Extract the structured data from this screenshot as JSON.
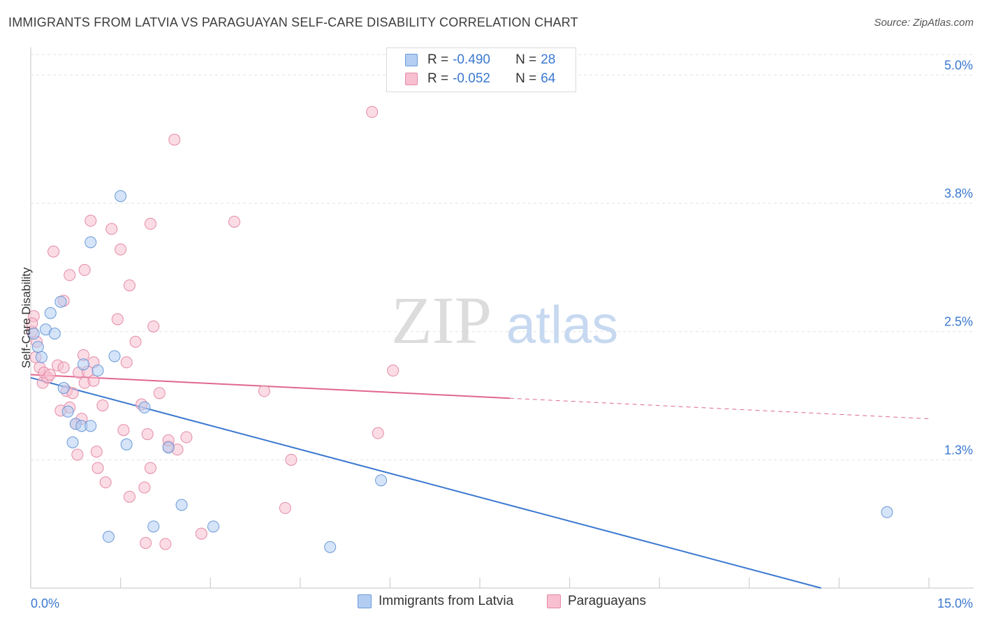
{
  "header": {
    "title": "IMMIGRANTS FROM LATVIA VS PARAGUAYAN SELF-CARE DISABILITY CORRELATION CHART",
    "source": "Source: ZipAtlas.com"
  },
  "watermark": {
    "zip": "ZIP",
    "atlas": "atlas"
  },
  "legend": {
    "rows": [
      {
        "r_label": "R =",
        "r_value": "-0.490",
        "n_label": "N =",
        "n_value": "28"
      },
      {
        "r_label": "R =",
        "r_value": "-0.052",
        "n_label": "N =",
        "n_value": "64"
      }
    ]
  },
  "bottom_legend": {
    "items": [
      "Immigrants from Latvia",
      "Paraguayans"
    ]
  },
  "chart_data": {
    "type": "scatter",
    "title": "IMMIGRANTS FROM LATVIA VS PARAGUAYAN SELF-CARE DISABILITY CORRELATION CHART",
    "ylabel": "Self-Care Disability",
    "xlabel": "",
    "xlim": [
      0,
      15
    ],
    "ylim": [
      0,
      5.2
    ],
    "x_tick_labels": [
      "0.0%",
      "15.0%"
    ],
    "y_ticks": [
      1.25,
      2.5,
      3.75,
      5.0
    ],
    "y_tick_labels": [
      "1.3%",
      "2.5%",
      "3.8%",
      "5.0%"
    ],
    "grid": true,
    "colors": {
      "latvia_fill": "#b3cdf2",
      "latvia_stroke": "#6a9ad8",
      "latvia_line": "#3a78d0",
      "paraguay_fill": "#f7bfd0",
      "paraguay_stroke": "#e48aa6",
      "paraguay_line": "#e0678f",
      "tick_label": "#3a78d0"
    },
    "series": [
      {
        "name": "Immigrants from Latvia",
        "points": [
          [
            0.05,
            2.48
          ],
          [
            0.12,
            2.35
          ],
          [
            0.18,
            2.25
          ],
          [
            0.25,
            2.52
          ],
          [
            0.33,
            2.68
          ],
          [
            0.4,
            2.48
          ],
          [
            0.5,
            2.79
          ],
          [
            0.55,
            1.95
          ],
          [
            0.62,
            1.72
          ],
          [
            0.7,
            1.42
          ],
          [
            0.75,
            1.6
          ],
          [
            0.85,
            1.58
          ],
          [
            0.88,
            2.18
          ],
          [
            1.0,
            1.58
          ],
          [
            1.0,
            3.37
          ],
          [
            1.12,
            2.12
          ],
          [
            1.3,
            0.5
          ],
          [
            1.4,
            2.26
          ],
          [
            1.5,
            3.82
          ],
          [
            1.6,
            1.4
          ],
          [
            1.9,
            1.76
          ],
          [
            2.05,
            0.6
          ],
          [
            2.3,
            1.37
          ],
          [
            2.52,
            0.81
          ],
          [
            3.05,
            0.6
          ],
          [
            5.0,
            0.4
          ],
          [
            5.85,
            1.05
          ],
          [
            14.3,
            0.74
          ]
        ]
      },
      {
        "name": "Paraguayans",
        "points": [
          [
            0.02,
            2.5
          ],
          [
            0.05,
            2.65
          ],
          [
            0.1,
            2.4
          ],
          [
            0.15,
            2.15
          ],
          [
            0.2,
            2.0
          ],
          [
            0.22,
            2.1
          ],
          [
            0.28,
            2.05
          ],
          [
            0.32,
            2.08
          ],
          [
            0.38,
            3.28
          ],
          [
            0.45,
            2.17
          ],
          [
            0.5,
            1.73
          ],
          [
            0.55,
            2.8
          ],
          [
            0.55,
            2.15
          ],
          [
            0.6,
            1.92
          ],
          [
            0.65,
            3.05
          ],
          [
            0.65,
            1.76
          ],
          [
            0.7,
            1.9
          ],
          [
            0.75,
            1.6
          ],
          [
            0.78,
            1.3
          ],
          [
            0.8,
            2.1
          ],
          [
            0.85,
            1.65
          ],
          [
            0.88,
            2.27
          ],
          [
            0.9,
            3.1
          ],
          [
            0.9,
            2.0
          ],
          [
            0.95,
            2.11
          ],
          [
            1.0,
            3.58
          ],
          [
            1.05,
            2.2
          ],
          [
            1.05,
            2.02
          ],
          [
            1.1,
            1.33
          ],
          [
            1.12,
            1.17
          ],
          [
            1.2,
            1.78
          ],
          [
            1.25,
            1.03
          ],
          [
            1.35,
            3.5
          ],
          [
            1.45,
            2.62
          ],
          [
            1.5,
            3.3
          ],
          [
            1.55,
            1.54
          ],
          [
            1.6,
            2.2
          ],
          [
            1.65,
            0.89
          ],
          [
            1.65,
            2.95
          ],
          [
            1.75,
            2.4
          ],
          [
            1.85,
            1.79
          ],
          [
            1.9,
            0.98
          ],
          [
            1.92,
            0.44
          ],
          [
            1.95,
            1.5
          ],
          [
            2.0,
            3.55
          ],
          [
            2.0,
            1.17
          ],
          [
            2.05,
            2.55
          ],
          [
            2.15,
            1.9
          ],
          [
            2.25,
            0.43
          ],
          [
            2.3,
            1.38
          ],
          [
            2.3,
            1.44
          ],
          [
            2.4,
            4.37
          ],
          [
            2.45,
            1.35
          ],
          [
            2.6,
            1.47
          ],
          [
            2.85,
            0.53
          ],
          [
            3.4,
            3.57
          ],
          [
            3.9,
            1.92
          ],
          [
            4.25,
            0.78
          ],
          [
            4.35,
            1.25
          ],
          [
            5.7,
            4.64
          ],
          [
            5.8,
            1.51
          ],
          [
            6.05,
            2.12
          ],
          [
            0.02,
            2.58
          ],
          [
            0.08,
            2.25
          ]
        ]
      }
    ],
    "trendlines": [
      {
        "series": "Immigrants from Latvia",
        "x": [
          0,
          13.2
        ],
        "y": [
          2.05,
          0.0
        ],
        "style": "solid"
      },
      {
        "series": "Paraguayans",
        "x": [
          0,
          8.0
        ],
        "y": [
          2.08,
          1.85
        ],
        "style": "solid"
      },
      {
        "series": "Paraguayans",
        "x": [
          8.0,
          15.0
        ],
        "y": [
          1.85,
          1.65
        ],
        "style": "dashed"
      }
    ]
  }
}
